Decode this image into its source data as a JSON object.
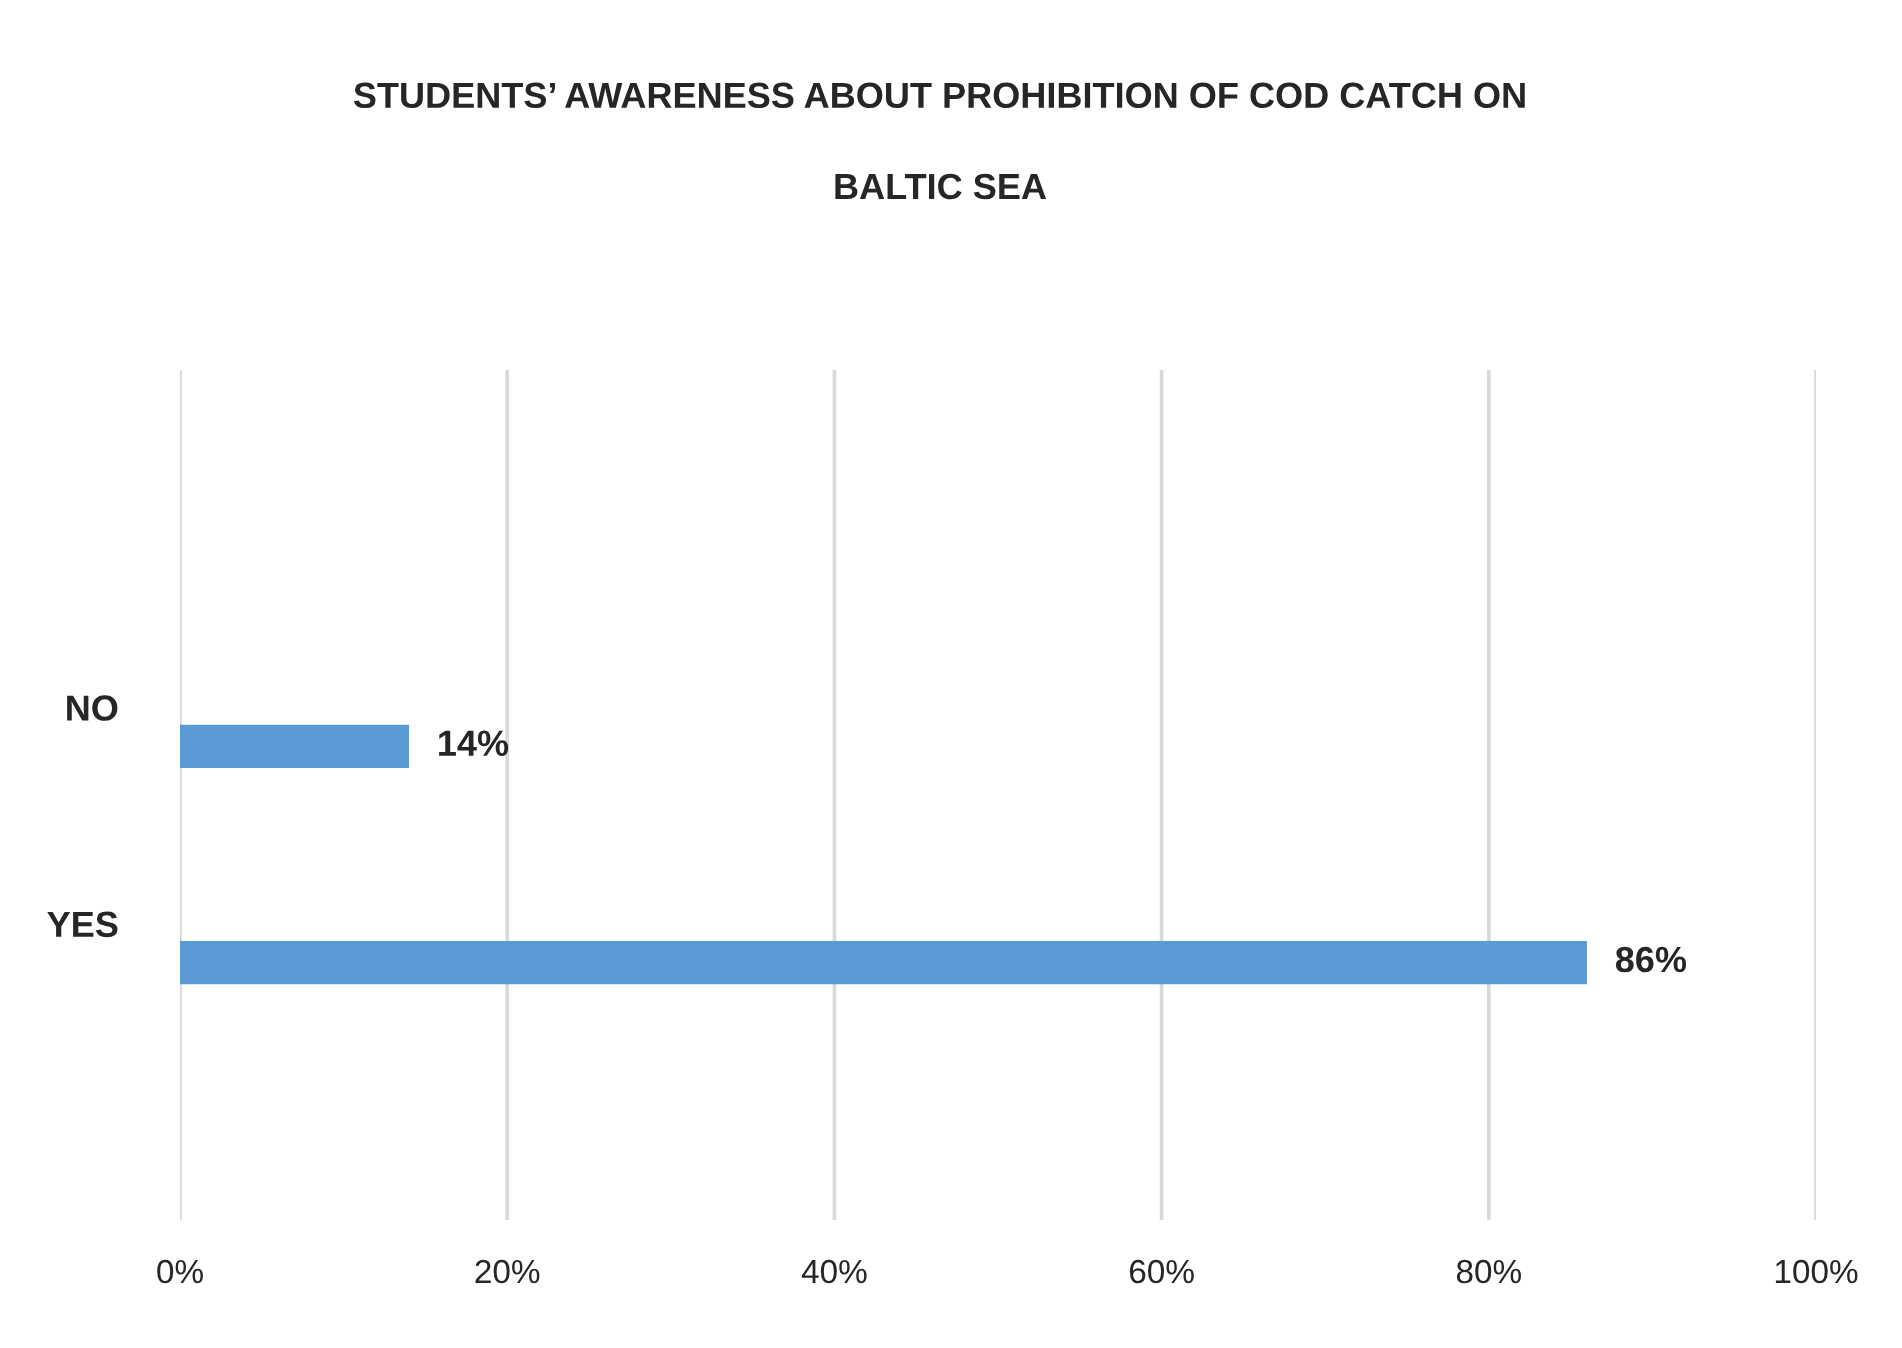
{
  "chart_data": {
    "type": "bar",
    "orientation": "horizontal",
    "title": "STUDENTS’ AWARENESS ABOUT PROHIBITION OF COD CATCH ON\nBALTIC SEA",
    "categories": [
      "NO",
      "YES"
    ],
    "values": [
      14,
      86
    ],
    "color": "#5b9bd5",
    "value_labels": [
      "14%",
      "86%"
    ],
    "xlim": [
      0,
      100
    ],
    "xticks": [
      {
        "value": 0,
        "label": "0%"
      },
      {
        "value": 20,
        "label": "20%"
      },
      {
        "value": 40,
        "label": "40%"
      },
      {
        "value": 60,
        "label": "60%"
      },
      {
        "value": 80,
        "label": "80%"
      },
      {
        "value": 100,
        "label": "100%"
      }
    ],
    "grid": "x"
  }
}
